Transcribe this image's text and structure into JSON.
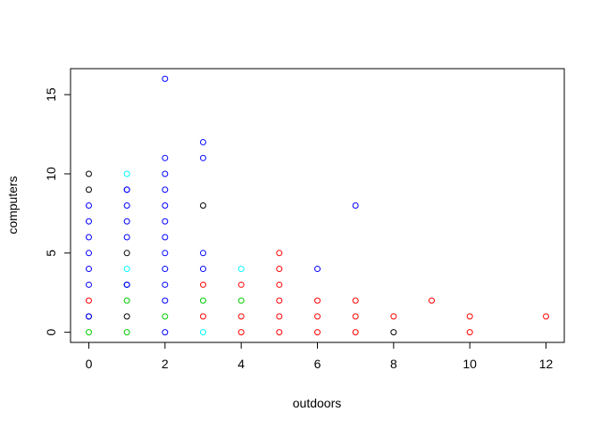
{
  "chart_data": {
    "type": "scatter",
    "title": "",
    "xlabel": "outdoors",
    "ylabel": "computers",
    "xlim": [
      -0.48,
      12.48
    ],
    "ylim": [
      -0.64,
      16.64
    ],
    "x_ticks": [
      0,
      2,
      4,
      6,
      8,
      10,
      12
    ],
    "x_tick_labels": [
      "0",
      "2",
      "4",
      "6",
      "8",
      "10",
      "12"
    ],
    "y_ticks": [
      0,
      5,
      10,
      15
    ],
    "y_tick_labels": [
      "0",
      "5",
      "10",
      "15"
    ],
    "grid": false,
    "legend": "none",
    "marker": "open-circle",
    "series": [
      {
        "color": "#000000",
        "x": [
          0,
          0,
          0,
          1,
          1,
          3,
          8
        ],
        "y": [
          1,
          9,
          10,
          1,
          5,
          8,
          0
        ]
      },
      {
        "color": "#ff0000",
        "x": [
          0,
          3,
          3,
          4,
          4,
          4,
          5,
          5,
          5,
          5,
          5,
          5,
          6,
          6,
          6,
          7,
          7,
          7,
          8,
          9,
          10,
          10,
          12
        ],
        "y": [
          2,
          1,
          3,
          0,
          1,
          3,
          0,
          1,
          2,
          3,
          4,
          5,
          0,
          1,
          2,
          0,
          1,
          2,
          1,
          2,
          0,
          1,
          1
        ]
      },
      {
        "color": "#00cd00",
        "x": [
          0,
          1,
          1,
          1,
          2,
          3,
          4
        ],
        "y": [
          0,
          0,
          2,
          3,
          1,
          2,
          2
        ]
      },
      {
        "color": "#0000ff",
        "x": [
          0,
          0,
          0,
          0,
          0,
          0,
          0,
          1,
          1,
          1,
          1,
          1,
          1,
          1,
          2,
          2,
          2,
          2,
          2,
          2,
          2,
          2,
          2,
          2,
          2,
          2,
          3,
          3,
          3,
          3,
          6,
          7
        ],
        "y": [
          3,
          4,
          5,
          6,
          7,
          8,
          1,
          6,
          7,
          8,
          9,
          3,
          9,
          3,
          0,
          2,
          3,
          4,
          5,
          6,
          7,
          8,
          9,
          10,
          11,
          16,
          4,
          5,
          11,
          12,
          4,
          8
        ]
      },
      {
        "color": "#00ffff",
        "x": [
          1,
          1,
          3,
          4
        ],
        "y": [
          4,
          10,
          0,
          4
        ]
      }
    ]
  }
}
